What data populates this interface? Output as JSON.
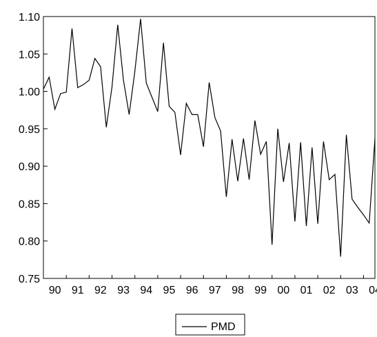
{
  "chart_data": {
    "type": "line",
    "title": "",
    "xlabel": "",
    "ylabel": "",
    "ylim": [
      0.75,
      1.1
    ],
    "xlim": [
      1990.0,
      2004.5
    ],
    "yticks": [
      "0.75",
      "0.80",
      "0.85",
      "0.90",
      "0.95",
      "1.00",
      "1.05",
      "1.10"
    ],
    "xticks": [
      "90",
      "91",
      "92",
      "93",
      "94",
      "95",
      "96",
      "97",
      "98",
      "99",
      "00",
      "01",
      "02",
      "03",
      "04"
    ],
    "grid": false,
    "legend_position": "bottom-center",
    "series": [
      {
        "name": "PMD",
        "color": "#000000",
        "x": [
          1990.0,
          1990.25,
          1990.5,
          1990.75,
          1991.0,
          1991.25,
          1991.5,
          1991.75,
          1992.0,
          1992.25,
          1992.5,
          1992.75,
          1993.0,
          1993.25,
          1993.5,
          1993.75,
          1994.0,
          1994.25,
          1994.5,
          1994.75,
          1995.0,
          1995.25,
          1995.5,
          1995.75,
          1996.0,
          1996.25,
          1996.5,
          1996.75,
          1997.0,
          1997.25,
          1997.5,
          1997.75,
          1998.0,
          1998.25,
          1998.5,
          1998.75,
          1999.0,
          1999.25,
          1999.5,
          1999.75,
          2000.0,
          2000.25,
          2000.5,
          2000.75,
          2001.0,
          2001.25,
          2001.5,
          2001.75,
          2002.0,
          2002.25,
          2002.5,
          2002.75,
          2003.0,
          2003.25,
          2003.5,
          2003.75,
          2004.0,
          2004.25,
          2004.5
        ],
        "values": [
          1.003,
          1.019,
          0.976,
          0.997,
          0.999,
          1.084,
          1.005,
          1.009,
          1.015,
          1.044,
          1.033,
          0.952,
          1.006,
          1.089,
          1.015,
          0.969,
          1.027,
          1.097,
          1.011,
          0.992,
          0.973,
          1.065,
          0.98,
          0.972,
          0.915,
          0.984,
          0.969,
          0.969,
          0.926,
          1.012,
          0.965,
          0.947,
          0.859,
          0.936,
          0.88,
          0.937,
          0.882,
          0.961,
          0.916,
          0.933,
          0.795,
          0.95,
          0.879,
          0.931,
          0.826,
          0.932,
          0.82,
          0.925,
          0.823,
          0.933,
          0.882,
          0.889,
          0.779,
          0.942,
          0.856,
          0.845,
          0.835,
          0.824,
          0.937
        ]
      }
    ]
  }
}
